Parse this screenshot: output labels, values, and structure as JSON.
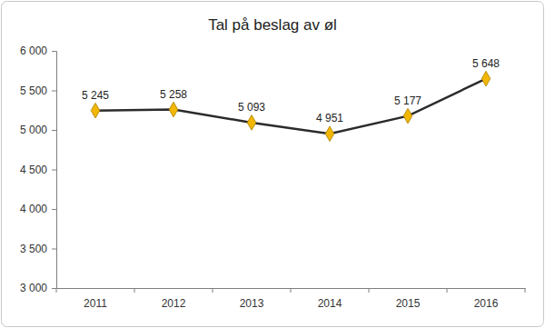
{
  "chart_data": {
    "type": "line",
    "title": "Tal på beslag av øl",
    "categories": [
      "2011",
      "2012",
      "2013",
      "2014",
      "2015",
      "2016"
    ],
    "values": [
      5245,
      5258,
      5093,
      4951,
      5177,
      5648
    ],
    "value_labels": [
      "5 245",
      "5 258",
      "5 093",
      "4 951",
      "5 177",
      "5 648"
    ],
    "color": "#2b2b2b",
    "colors": [
      "#f2b705",
      "#f2b705",
      "#f2b705",
      "#f2b705",
      "#f2b705",
      "#f2b705"
    ],
    "marker": "diamond",
    "line_style": "solid",
    "data_labels": true,
    "grid": false,
    "ylim": [
      3000,
      6000
    ],
    "yticks": [
      {
        "value": 3000,
        "label": "3 000"
      },
      {
        "value": 3500,
        "label": "3 500"
      },
      {
        "value": 4000,
        "label": "4 000"
      },
      {
        "value": 4500,
        "label": "4 500"
      },
      {
        "value": 5000,
        "label": "5 000"
      },
      {
        "value": 5500,
        "label": "5 500"
      },
      {
        "value": 6000,
        "label": "6 000"
      }
    ]
  }
}
